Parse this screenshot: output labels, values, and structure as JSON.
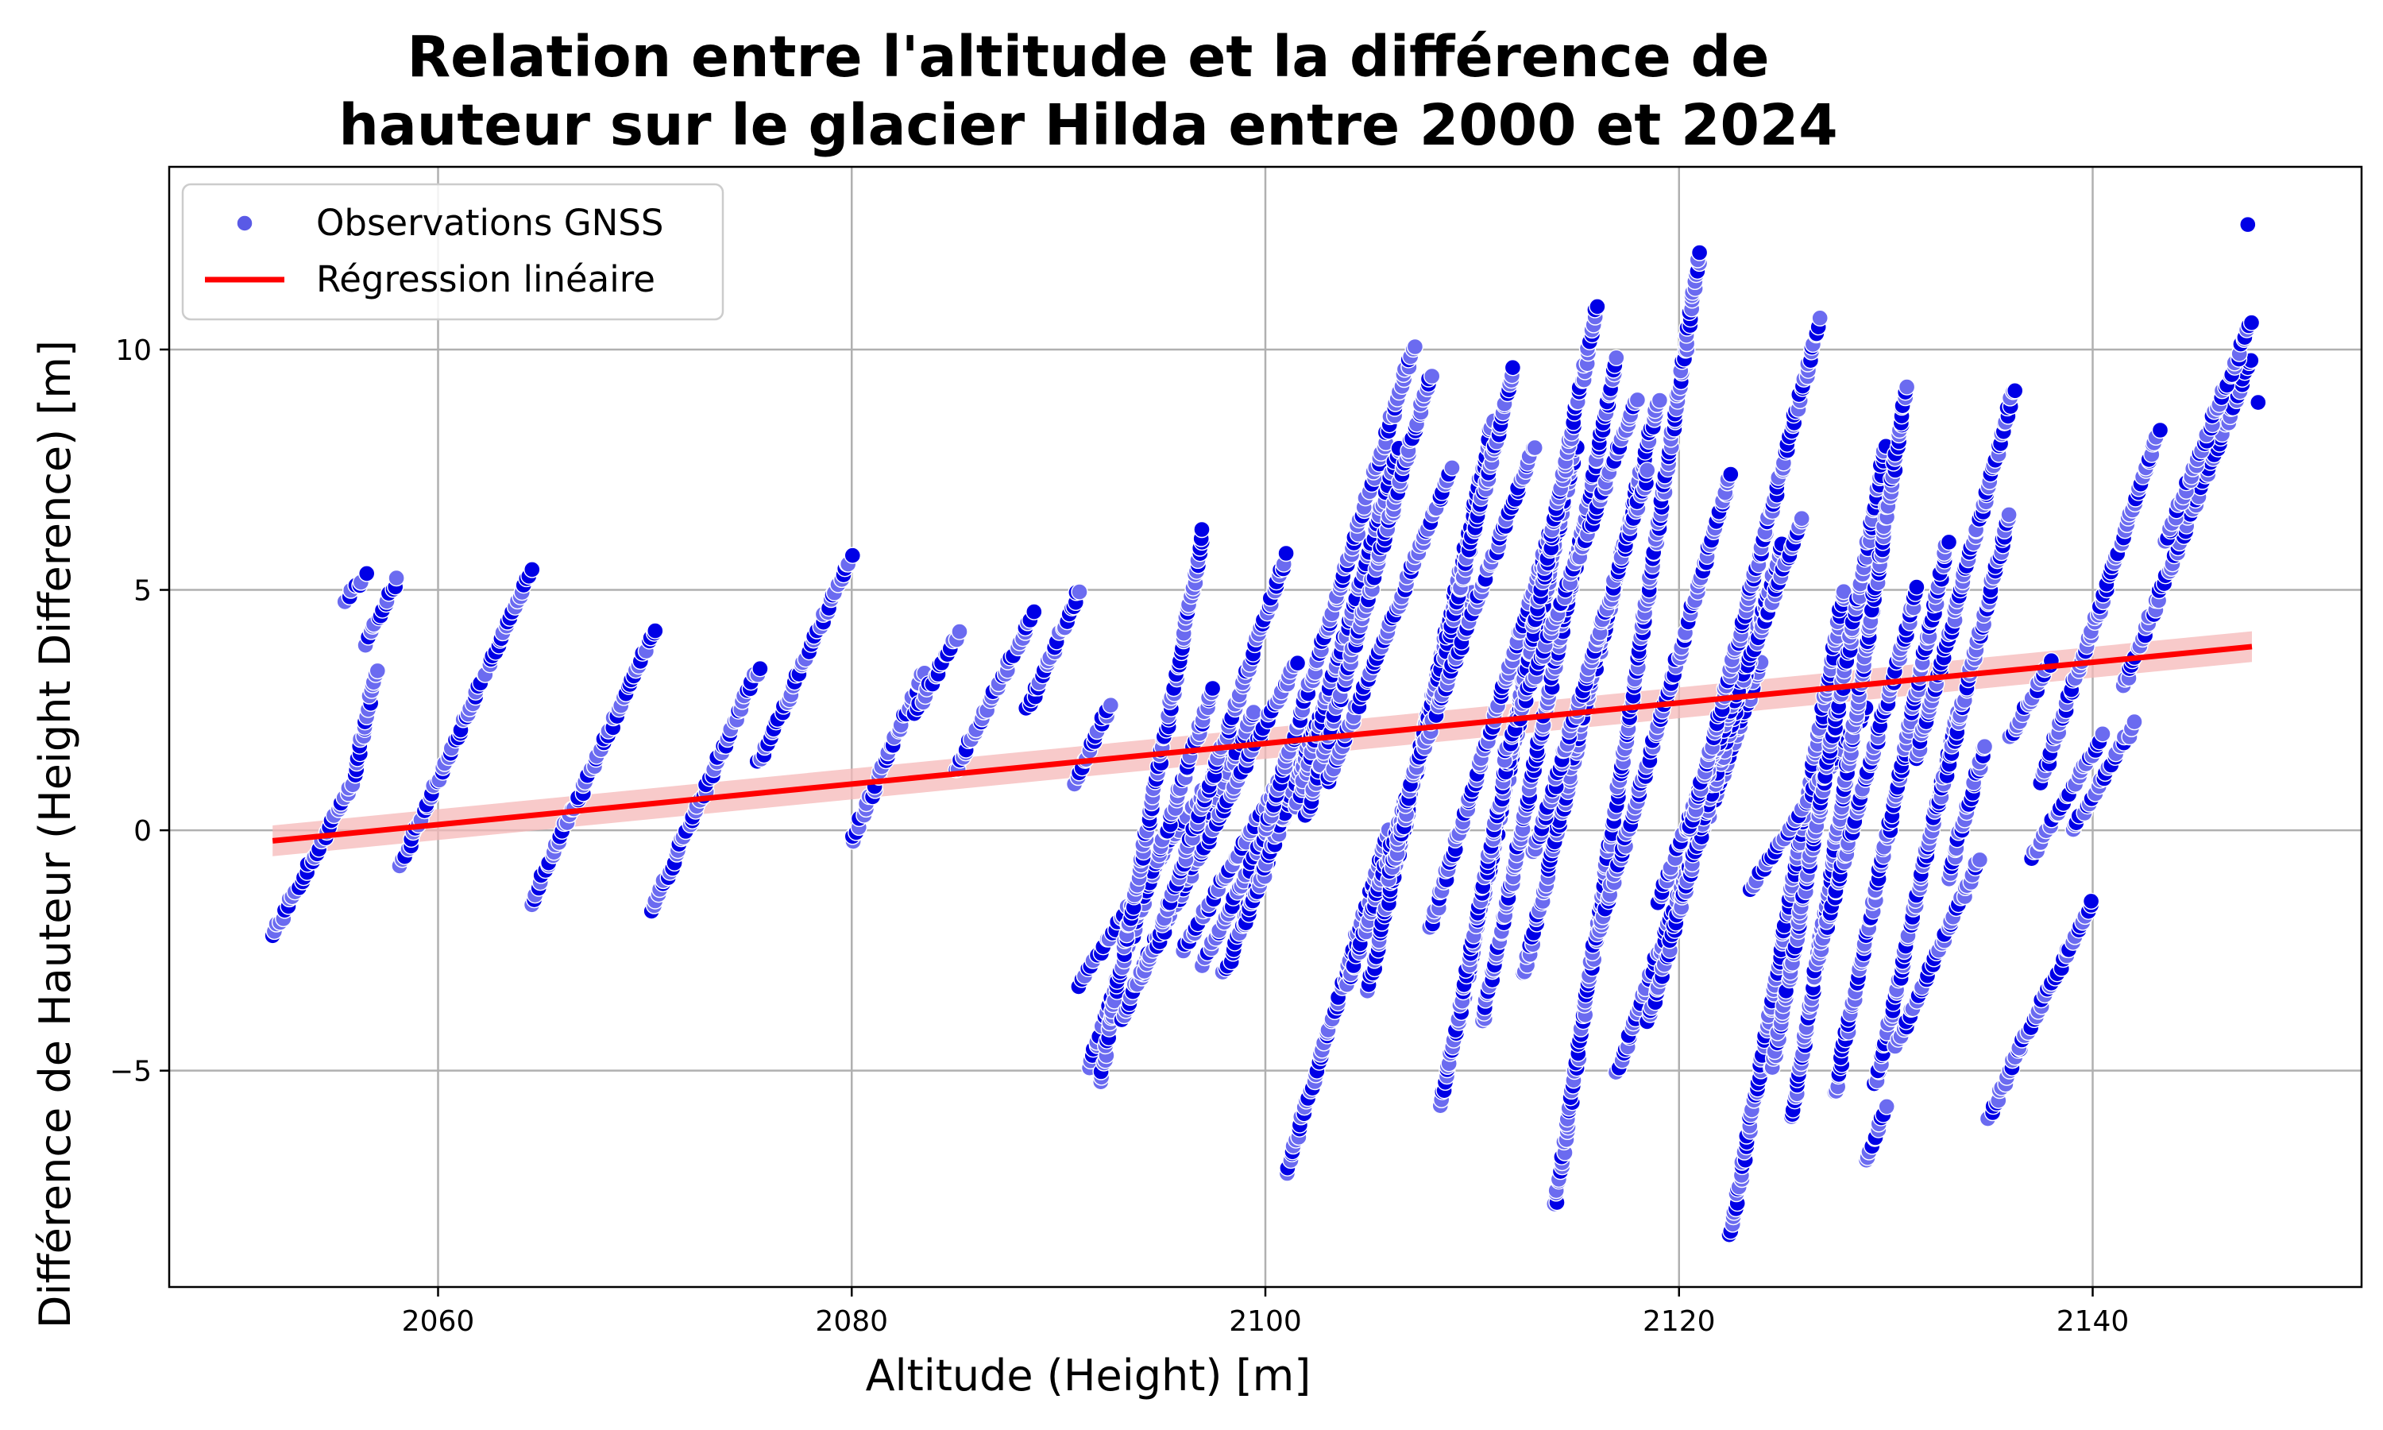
{
  "chart_data": {
    "type": "scatter",
    "title_lines": [
      "Relation entre l'altitude et la différence de",
      "hauteur sur le glacier Hilda entre 2000 et 2024"
    ],
    "xlabel": "Altitude (Height) [m]",
    "ylabel": "Différence de Hauteur (Height Difference) [m]",
    "xlim": [
      2047,
      2153
    ],
    "ylim": [
      -9.5,
      13.8
    ],
    "x_ticks": [
      2060,
      2080,
      2100,
      2120,
      2140
    ],
    "x_tick_labels": [
      "2060",
      "2080",
      "2100",
      "2120",
      "2140"
    ],
    "y_ticks": [
      -5,
      0,
      5,
      10
    ],
    "y_tick_labels": [
      "−5",
      "0",
      "5",
      "10"
    ],
    "grid": true,
    "legend": {
      "placement": "top-left",
      "entries": [
        {
          "label": "Observations GNSS",
          "kind": "marker",
          "color": "#5a5ae6"
        },
        {
          "label": "Régression linéaire",
          "kind": "line",
          "color": "#ff0000"
        }
      ]
    },
    "colors": {
      "points": "#0000e6",
      "points_light": "#6b6bf0",
      "regression": "#ff0000",
      "confidence_band": "#f5b8b8"
    },
    "series": [
      {
        "name": "Observations GNSS",
        "kind": "scatter",
        "track_note_free": true,
        "tracks": [
          [
            2052.0,
            -2.2,
            2056.0,
            1.1
          ],
          [
            2055.5,
            4.8,
            2056.5,
            5.3
          ],
          [
            2056.0,
            1.2,
            2057.0,
            3.3
          ],
          [
            2056.5,
            3.9,
            2058.0,
            5.2
          ],
          [
            2058.2,
            -0.7,
            2064.5,
            5.4
          ],
          [
            2064.5,
            -1.5,
            2070.5,
            4.2
          ],
          [
            2070.3,
            -1.7,
            2075.5,
            3.4
          ],
          [
            2075.5,
            1.4,
            2080.0,
            5.7
          ],
          [
            2080.0,
            -0.2,
            2083.5,
            3.3
          ],
          [
            2083.0,
            2.4,
            2085.2,
            4.1
          ],
          [
            2085.0,
            1.2,
            2088.8,
            4.5
          ],
          [
            2088.5,
            2.5,
            2091.0,
            5.0
          ],
          [
            2090.8,
            1.0,
            2092.5,
            2.6
          ],
          [
            2091.0,
            -3.2,
            2098.0,
            1.5
          ],
          [
            2091.5,
            -4.9,
            2097.5,
            3.0
          ],
          [
            2092.0,
            -5.2,
            2097.0,
            6.2
          ],
          [
            2093.0,
            -4.0,
            2099.5,
            2.5
          ],
          [
            2094.0,
            -3.0,
            2101.5,
            3.5
          ],
          [
            2095.0,
            -2.0,
            2101.0,
            5.7
          ],
          [
            2096.0,
            -2.5,
            2102.0,
            2.0
          ],
          [
            2097.0,
            -2.8,
            2104.0,
            3.5
          ],
          [
            2098.0,
            -3.0,
            2105.0,
            5.0
          ],
          [
            2099.0,
            -2.0,
            2106.0,
            6.5
          ],
          [
            2100.0,
            0.0,
            2107.2,
            10.1
          ],
          [
            2101.0,
            -7.1,
            2106.0,
            0.0
          ],
          [
            2101.5,
            0.5,
            2106.5,
            8.0
          ],
          [
            2102.0,
            0.3,
            2108.0,
            9.5
          ],
          [
            2103.0,
            1.0,
            2109.0,
            7.5
          ],
          [
            2104.0,
            -3.2,
            2110.0,
            5.0
          ],
          [
            2105.0,
            -3.3,
            2111.0,
            8.5
          ],
          [
            2106.0,
            -1.0,
            2112.0,
            9.6
          ],
          [
            2107.0,
            1.0,
            2113.0,
            8.0
          ],
          [
            2108.0,
            -2.0,
            2114.0,
            6.5
          ],
          [
            2108.5,
            -5.7,
            2115.0,
            8.0
          ],
          [
            2109.5,
            -3.5,
            2116.0,
            10.9
          ],
          [
            2110.5,
            -4.0,
            2117.0,
            9.8
          ],
          [
            2111.5,
            1.5,
            2118.0,
            9.0
          ],
          [
            2112.5,
            -3.0,
            2119.0,
            9.0
          ],
          [
            2113.0,
            -0.5,
            2118.5,
            7.5
          ],
          [
            2114.0,
            -7.8,
            2121.0,
            12.0
          ],
          [
            2116.0,
            -2.3,
            2122.5,
            7.4
          ],
          [
            2117.0,
            -5.0,
            2124.0,
            3.5
          ],
          [
            2118.5,
            -4.0,
            2125.0,
            6.0
          ],
          [
            2119.0,
            -1.5,
            2126.0,
            6.5
          ],
          [
            2120.5,
            0.0,
            2126.8,
            10.6
          ],
          [
            2122.5,
            -8.4,
            2128.0,
            5.0
          ],
          [
            2123.5,
            -1.2,
            2129.0,
            2.5
          ],
          [
            2124.5,
            -5.0,
            2130.0,
            8.0
          ],
          [
            2125.5,
            -6.0,
            2131.0,
            9.2
          ],
          [
            2126.5,
            -3.0,
            2131.5,
            5.0
          ],
          [
            2127.5,
            -5.5,
            2133.0,
            6.0
          ],
          [
            2129.0,
            -6.9,
            2130.0,
            -5.8
          ],
          [
            2129.5,
            -5.3,
            2133.5,
            2.5
          ],
          [
            2130.5,
            -4.5,
            2134.5,
            -0.6
          ],
          [
            2131.5,
            1.5,
            2136.2,
            9.2
          ],
          [
            2132.5,
            0.5,
            2136.0,
            6.6
          ],
          [
            2133.0,
            -1.0,
            2134.8,
            1.8
          ],
          [
            2135.0,
            -6.0,
            2136.5,
            -4.5
          ],
          [
            2136.0,
            1.9,
            2138.0,
            3.5
          ],
          [
            2136.5,
            -4.5,
            2140.0,
            -1.5
          ],
          [
            2137.0,
            -0.6,
            2140.5,
            2.0
          ],
          [
            2137.5,
            1.0,
            2143.2,
            8.3
          ],
          [
            2139.0,
            0.0,
            2142.0,
            2.2
          ],
          [
            2141.5,
            3.0,
            2147.7,
            9.8
          ],
          [
            2143.5,
            6.0,
            2147.7,
            10.6
          ]
        ],
        "isolated_points": [
          [
            2147.5,
            12.6
          ],
          [
            2148.0,
            8.9
          ]
        ]
      },
      {
        "name": "Régression linéaire",
        "kind": "line",
        "x": [
          2052,
          2147.7
        ],
        "y": [
          -0.22,
          3.82
        ]
      }
    ]
  }
}
